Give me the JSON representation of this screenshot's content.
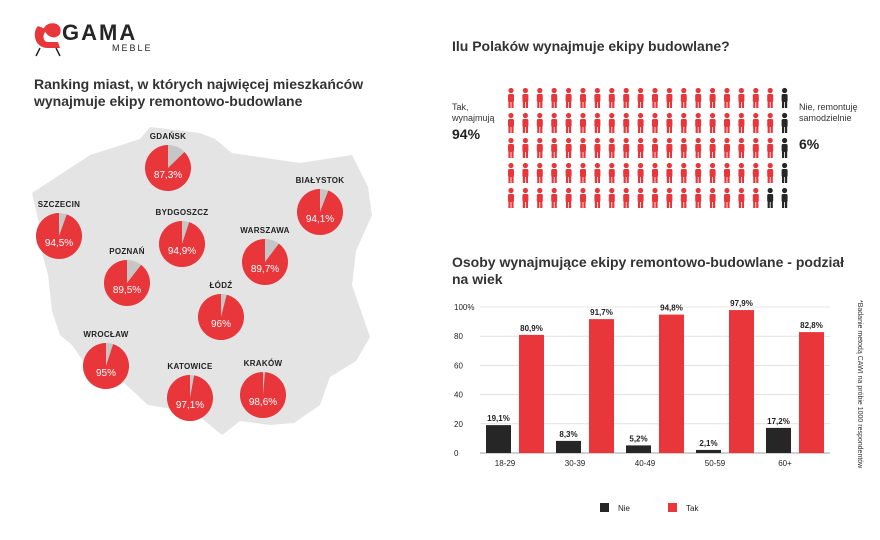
{
  "brand": {
    "name": "GAMA",
    "sub": "MEBLE",
    "colors": {
      "red": "#e8363b",
      "dark": "#262626",
      "grey": "#c6c6c6",
      "map": "#e4e4e4"
    }
  },
  "map_section": {
    "title": "Ranking miast, w których najwięcej mieszkańców wynajmuje ekipy remontowo-budowlane"
  },
  "picto_section": {
    "title": "Ilu Polaków wynajmuje ekipy budowlane?",
    "yes_label": "Tak, wynajmują",
    "yes_value": "94%",
    "no_label": "Nie, remontuję samodzielnie",
    "no_value": "6%"
  },
  "bar_section": {
    "title": "Osoby wynajmujące ekipy remontowo-budowlane - podział na wiek"
  },
  "footnote": "*Badanie metodą CAWI na próbie 1000 respondentów",
  "chart_data": [
    {
      "type": "pie",
      "title": "Ranking miast, w których najwięcej mieszkańców wynajmuje ekipy remontowo-budowlane",
      "cities": [
        {
          "name": "GDAŃSK",
          "value": 87.3,
          "label": "87,3%"
        },
        {
          "name": "BIAŁYSTOK",
          "value": 94.1,
          "label": "94,1%"
        },
        {
          "name": "SZCZECIN",
          "value": 94.5,
          "label": "94,5%"
        },
        {
          "name": "BYDGOSZCZ",
          "value": 94.9,
          "label": "94,9%"
        },
        {
          "name": "WARSZAWA",
          "value": 89.7,
          "label": "89,7%"
        },
        {
          "name": "POZNAŃ",
          "value": 89.5,
          "label": "89,5%"
        },
        {
          "name": "ŁÓDŹ",
          "value": 96,
          "label": "96%"
        },
        {
          "name": "WROCŁAW",
          "value": 95,
          "label": "95%"
        },
        {
          "name": "KATOWICE",
          "value": 97.1,
          "label": "97,1%"
        },
        {
          "name": "KRAKÓW",
          "value": 98.6,
          "label": "98,6%"
        }
      ]
    },
    {
      "type": "pictogram",
      "title": "Ilu Polaków wynajmuje ekipy budowlane?",
      "total": 100,
      "series": [
        {
          "name": "Tak, wynajmują",
          "value": 94,
          "color": "#e8363b"
        },
        {
          "name": "Nie, remontuję samodzielnie",
          "value": 6,
          "color": "#262626"
        }
      ]
    },
    {
      "type": "bar",
      "title": "Osoby wynajmujące ekipy remontowo-budowlane - podział na wiek",
      "categories": [
        "18-29",
        "30-39",
        "40-49",
        "50-59",
        "60+"
      ],
      "series": [
        {
          "name": "Nie",
          "color": "#262626",
          "values": [
            19.1,
            8.3,
            5.2,
            2.1,
            17.2
          ],
          "labels": [
            "19,1%",
            "8,3%",
            "5,2%",
            "2,1%",
            "17,2%"
          ]
        },
        {
          "name": "Tak",
          "color": "#e8363b",
          "values": [
            80.9,
            91.7,
            94.8,
            97.9,
            82.8
          ],
          "labels": [
            "80,9%",
            "91,7%",
            "94,8%",
            "97,9%",
            "82,8%"
          ]
        }
      ],
      "ylim": [
        0,
        100
      ],
      "yticks": [
        "0",
        "20",
        "40",
        "60",
        "80",
        "100%"
      ],
      "grid": true,
      "legend": "bottom"
    }
  ]
}
